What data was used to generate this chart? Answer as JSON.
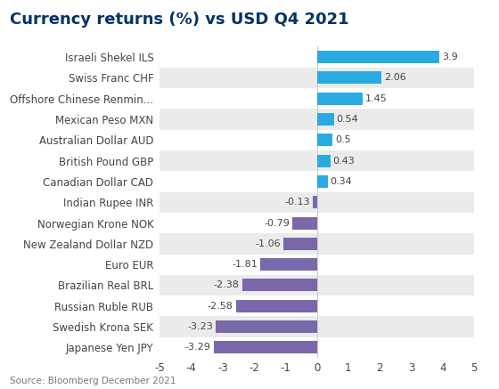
{
  "title": "Currency returns (%) vs USD Q4 2021",
  "categories": [
    "Japanese Yen JPY",
    "Swedish Krona SEK",
    "Russian Ruble RUB",
    "Brazilian Real BRL",
    "Euro EUR",
    "New Zealand Dollar NZD",
    "Norwegian Krone NOK",
    "Indian Rupee INR",
    "Canadian Dollar CAD",
    "British Pound GBP",
    "Australian Dollar AUD",
    "Mexican Peso MXN",
    "Offshore Chinese Renmin...",
    "Swiss Franc CHF",
    "Israeli Shekel ILS"
  ],
  "values": [
    -3.29,
    -3.23,
    -2.58,
    -2.38,
    -1.81,
    -1.06,
    -0.79,
    -0.13,
    0.34,
    0.43,
    0.5,
    0.54,
    1.45,
    2.06,
    3.9
  ],
  "positive_color": "#29ABE2",
  "negative_color": "#7B68AA",
  "background_color": "#FFFFFF",
  "row_color_odd": "#FFFFFF",
  "row_color_even": "#EBEBEB",
  "xlim": [
    -5,
    5
  ],
  "xticks": [
    -5,
    -4,
    -3,
    -2,
    -1,
    0,
    1,
    2,
    3,
    4,
    5
  ],
  "source_text": "Source: Bloomberg December 2021",
  "title_fontsize": 13,
  "label_fontsize": 8.5,
  "value_fontsize": 8,
  "source_fontsize": 7.5,
  "title_color": "#003366",
  "label_color": "#444444",
  "value_color": "#444444"
}
